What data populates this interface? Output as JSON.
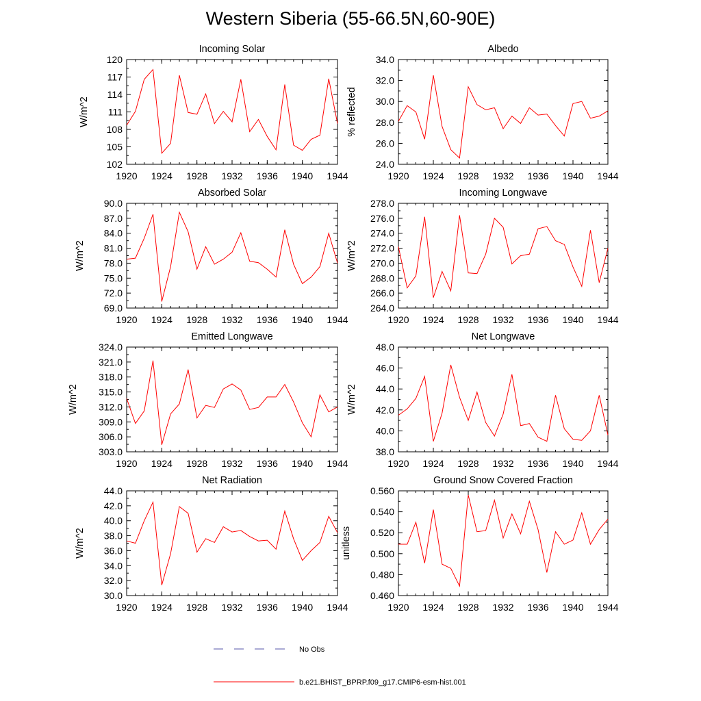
{
  "title": "Western Siberia (55-66.5N,60-90E)",
  "chart_data": [
    {
      "type": "line",
      "title": "Incoming Solar",
      "ylabel": "W/m^2",
      "ylim": [
        102,
        120
      ],
      "yticks": [
        "102",
        "105",
        "108",
        "111",
        "114",
        "117",
        "120"
      ],
      "xlim": [
        1920,
        1944
      ],
      "xticks": [
        "1920",
        "1924",
        "1928",
        "1932",
        "1936",
        "1940",
        "1944"
      ],
      "series": [
        {
          "name": "b.e21.BHIST_BPRP.f09_g17.CMIP6-esm-hist.001",
          "color": "#ff0000",
          "x": [
            1920,
            1921,
            1922,
            1923,
            1924,
            1925,
            1926,
            1927,
            1928,
            1929,
            1930,
            1931,
            1932,
            1933,
            1934,
            1935,
            1936,
            1937,
            1938,
            1939,
            1940,
            1941,
            1942,
            1943,
            1944
          ],
          "y": [
            108.7,
            111.1,
            116.6,
            118.3,
            103.9,
            105.6,
            117.3,
            110.9,
            110.6,
            114.1,
            109.0,
            111.1,
            109.3,
            116.6,
            107.6,
            109.7,
            106.8,
            104.5,
            115.7,
            105.3,
            104.4,
            106.3,
            107.0,
            116.7,
            109.0
          ]
        }
      ]
    },
    {
      "type": "line",
      "title": "Albedo",
      "ylabel": "% reflected",
      "ylim": [
        24,
        34
      ],
      "yticks": [
        "24.0",
        "26.0",
        "28.0",
        "30.0",
        "32.0",
        "34.0"
      ],
      "xlim": [
        1920,
        1944
      ],
      "xticks": [
        "1920",
        "1924",
        "1928",
        "1932",
        "1936",
        "1940",
        "1944"
      ],
      "series": [
        {
          "name": "b.e21.BHIST_BPRP.f09_g17.CMIP6-esm-hist.001",
          "color": "#ff0000",
          "x": [
            1920,
            1921,
            1922,
            1923,
            1924,
            1925,
            1926,
            1927,
            1928,
            1929,
            1930,
            1931,
            1932,
            1933,
            1934,
            1935,
            1936,
            1937,
            1938,
            1939,
            1940,
            1941,
            1942,
            1943,
            1944
          ],
          "y": [
            28.1,
            29.6,
            29.0,
            26.4,
            32.5,
            27.6,
            25.4,
            24.6,
            31.4,
            29.7,
            29.2,
            29.4,
            27.4,
            28.6,
            27.9,
            29.4,
            28.7,
            28.8,
            27.7,
            26.7,
            29.8,
            30.0,
            28.4,
            28.6,
            29.1
          ]
        }
      ]
    },
    {
      "type": "line",
      "title": "Absorbed Solar",
      "ylabel": "W/m^2",
      "ylim": [
        69,
        90
      ],
      "yticks": [
        "69.0",
        "72.0",
        "75.0",
        "78.0",
        "81.0",
        "84.0",
        "87.0",
        "90.0"
      ],
      "xlim": [
        1920,
        1944
      ],
      "xticks": [
        "1920",
        "1924",
        "1928",
        "1932",
        "1936",
        "1940",
        "1944"
      ],
      "series": [
        {
          "name": "b.e21.BHIST_BPRP.f09_g17.CMIP6-esm-hist.001",
          "color": "#ff0000",
          "x": [
            1920,
            1921,
            1922,
            1923,
            1924,
            1925,
            1926,
            1927,
            1928,
            1929,
            1930,
            1931,
            1932,
            1933,
            1934,
            1935,
            1936,
            1937,
            1938,
            1939,
            1940,
            1941,
            1942,
            1943,
            1944
          ],
          "y": [
            78.8,
            79.0,
            83.0,
            87.8,
            70.3,
            77.3,
            88.2,
            84.3,
            76.8,
            81.3,
            77.8,
            78.8,
            80.2,
            84.1,
            78.4,
            78.1,
            76.8,
            75.2,
            84.7,
            77.8,
            73.9,
            75.2,
            77.3,
            84.0,
            78.0
          ]
        }
      ]
    },
    {
      "type": "line",
      "title": "Incoming Longwave",
      "ylabel": "W/m^2",
      "ylim": [
        264,
        278
      ],
      "yticks": [
        "264.0",
        "266.0",
        "268.0",
        "270.0",
        "272.0",
        "274.0",
        "276.0",
        "278.0"
      ],
      "xlim": [
        1920,
        1944
      ],
      "xticks": [
        "1920",
        "1924",
        "1928",
        "1932",
        "1936",
        "1940",
        "1944"
      ],
      "series": [
        {
          "name": "b.e21.BHIST_BPRP.f09_g17.CMIP6-esm-hist.001",
          "color": "#ff0000",
          "x": [
            1920,
            1921,
            1922,
            1923,
            1924,
            1925,
            1926,
            1927,
            1928,
            1929,
            1930,
            1931,
            1932,
            1933,
            1934,
            1935,
            1936,
            1937,
            1938,
            1939,
            1940,
            1941,
            1942,
            1943,
            1944
          ],
          "y": [
            272.2,
            266.7,
            268.3,
            276.2,
            265.4,
            268.9,
            266.3,
            276.4,
            268.7,
            268.6,
            271.2,
            276.0,
            274.8,
            269.9,
            271.0,
            271.2,
            274.6,
            274.9,
            273.0,
            272.5,
            269.5,
            266.9,
            274.4,
            267.4,
            272.0
          ]
        }
      ]
    },
    {
      "type": "line",
      "title": "Emitted Longwave",
      "ylabel": "W/m^2",
      "ylim": [
        303,
        324
      ],
      "yticks": [
        "303.0",
        "306.0",
        "309.0",
        "312.0",
        "315.0",
        "318.0",
        "321.0",
        "324.0"
      ],
      "xlim": [
        1920,
        1944
      ],
      "xticks": [
        "1920",
        "1924",
        "1928",
        "1932",
        "1936",
        "1940",
        "1944"
      ],
      "series": [
        {
          "name": "b.e21.BHIST_BPRP.f09_g17.CMIP6-esm-hist.001",
          "color": "#ff0000",
          "x": [
            1920,
            1921,
            1922,
            1923,
            1924,
            1925,
            1926,
            1927,
            1928,
            1929,
            1930,
            1931,
            1932,
            1933,
            1934,
            1935,
            1936,
            1937,
            1938,
            1939,
            1940,
            1941,
            1942,
            1943,
            1944
          ],
          "y": [
            313.7,
            308.7,
            311.2,
            321.3,
            304.4,
            310.6,
            312.6,
            319.5,
            309.8,
            312.3,
            311.9,
            315.6,
            316.6,
            315.4,
            311.5,
            311.9,
            314.0,
            314.0,
            316.5,
            313.0,
            308.8,
            306.0,
            314.4,
            311.0,
            312.0
          ]
        }
      ]
    },
    {
      "type": "line",
      "title": "Net Longwave",
      "ylabel": "W/m^2",
      "ylim": [
        38,
        48
      ],
      "yticks": [
        "38.0",
        "40.0",
        "42.0",
        "44.0",
        "46.0",
        "48.0"
      ],
      "xlim": [
        1920,
        1944
      ],
      "xticks": [
        "1920",
        "1924",
        "1928",
        "1932",
        "1936",
        "1940",
        "1944"
      ],
      "series": [
        {
          "name": "b.e21.BHIST_BPRP.f09_g17.CMIP6-esm-hist.001",
          "color": "#ff0000",
          "x": [
            1920,
            1921,
            1922,
            1923,
            1924,
            1925,
            1926,
            1927,
            1928,
            1929,
            1930,
            1931,
            1932,
            1933,
            1934,
            1935,
            1936,
            1937,
            1938,
            1939,
            1940,
            1941,
            1942,
            1943,
            1944
          ],
          "y": [
            41.5,
            42.1,
            43.1,
            45.2,
            39.0,
            41.7,
            46.3,
            43.2,
            41.0,
            43.7,
            40.8,
            39.5,
            41.6,
            45.4,
            40.5,
            40.7,
            39.4,
            39.0,
            43.4,
            40.2,
            39.2,
            39.1,
            40.0,
            43.4,
            39.6
          ]
        }
      ]
    },
    {
      "type": "line",
      "title": "Net Radiation",
      "ylabel": "W/m^2",
      "ylim": [
        30,
        44
      ],
      "yticks": [
        "30.0",
        "32.0",
        "34.0",
        "36.0",
        "38.0",
        "40.0",
        "42.0",
        "44.0"
      ],
      "xlim": [
        1920,
        1944
      ],
      "xticks": [
        "1920",
        "1924",
        "1928",
        "1932",
        "1936",
        "1940",
        "1944"
      ],
      "series": [
        {
          "name": "b.e21.BHIST_BPRP.f09_g17.CMIP6-esm-hist.001",
          "color": "#ff0000",
          "x": [
            1920,
            1921,
            1922,
            1923,
            1924,
            1925,
            1926,
            1927,
            1928,
            1929,
            1930,
            1931,
            1932,
            1933,
            1934,
            1935,
            1936,
            1937,
            1938,
            1939,
            1940,
            1941,
            1942,
            1943,
            1944
          ],
          "y": [
            37.3,
            37.0,
            40.0,
            42.5,
            31.4,
            35.6,
            41.9,
            41.0,
            35.8,
            37.6,
            37.1,
            39.2,
            38.5,
            38.7,
            37.9,
            37.3,
            37.4,
            36.2,
            41.3,
            37.6,
            34.7,
            36.0,
            37.1,
            40.6,
            38.4
          ]
        }
      ]
    },
    {
      "type": "line",
      "title": "Ground Snow Covered Fraction",
      "ylabel": "unitless",
      "ylim": [
        0.46,
        0.56
      ],
      "yticks": [
        "0.460",
        "0.480",
        "0.500",
        "0.520",
        "0.540",
        "0.560"
      ],
      "xlim": [
        1920,
        1944
      ],
      "xticks": [
        "1920",
        "1924",
        "1928",
        "1932",
        "1936",
        "1940",
        "1944"
      ],
      "series": [
        {
          "name": "b.e21.BHIST_BPRP.f09_g17.CMIP6-esm-hist.001",
          "color": "#ff0000",
          "x": [
            1920,
            1921,
            1922,
            1923,
            1924,
            1925,
            1926,
            1927,
            1928,
            1929,
            1930,
            1931,
            1932,
            1933,
            1934,
            1935,
            1936,
            1937,
            1938,
            1939,
            1940,
            1941,
            1942,
            1943,
            1944
          ],
          "y": [
            0.509,
            0.509,
            0.53,
            0.491,
            0.542,
            0.49,
            0.486,
            0.469,
            0.556,
            0.521,
            0.522,
            0.551,
            0.515,
            0.538,
            0.519,
            0.55,
            0.523,
            0.482,
            0.521,
            0.509,
            0.513,
            0.539,
            0.509,
            0.523,
            0.533
          ]
        }
      ]
    }
  ],
  "legend": {
    "placement": "bottom-center",
    "items": [
      {
        "label": "No Obs",
        "color": "#5555aa",
        "dash": true
      },
      {
        "label": "b.e21.BHIST_BPRP.f09_g17.CMIP6-esm-hist.001",
        "color": "#ff0000",
        "dash": false
      }
    ]
  }
}
